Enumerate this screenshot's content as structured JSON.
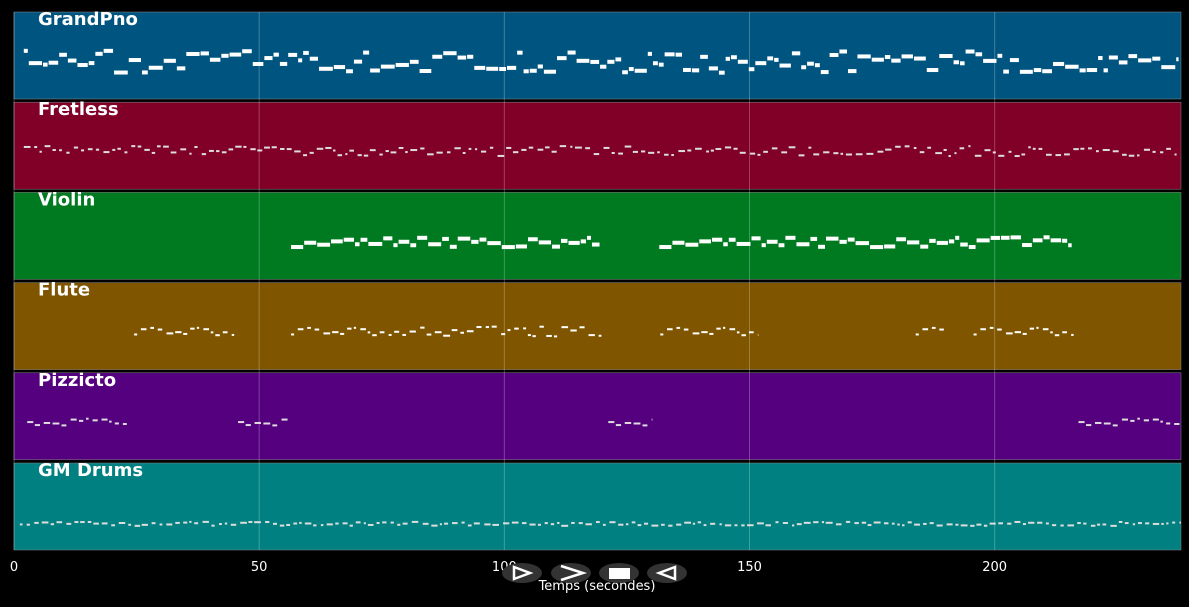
{
  "chart_data": {
    "type": "pianoroll",
    "xlabel": "Temps (secondes)",
    "xlim": [
      0,
      238
    ],
    "xticks": [
      0,
      50,
      100,
      150,
      200
    ],
    "grid": true,
    "tracks": [
      {
        "name": "GrandPno",
        "color": "#005580",
        "segments": [
          [
            2,
            237.5
          ]
        ]
      },
      {
        "name": "Fretless",
        "color": "#800028",
        "segments": [
          [
            2,
            237.5
          ]
        ]
      },
      {
        "name": "Violin",
        "color": "#007a20",
        "segments": [
          [
            56.5,
            119.6
          ],
          [
            131.6,
            215.7
          ]
        ]
      },
      {
        "name": "Flute",
        "color": "#7f5500",
        "segments": [
          [
            24.5,
            44.9
          ],
          [
            56.5,
            119.8
          ],
          [
            131.8,
            151.8
          ],
          [
            183.9,
            190.2
          ],
          [
            195.7,
            216.1
          ]
        ]
      },
      {
        "name": "Pizzicto",
        "color": "#55007f",
        "segments": [
          [
            2.7,
            23
          ],
          [
            45.7,
            56.1
          ],
          [
            121.2,
            130.2
          ],
          [
            217.1,
            238
          ]
        ]
      },
      {
        "name": "GM Drums",
        "color": "#008080",
        "segments": [
          [
            1.2,
            238
          ]
        ]
      }
    ]
  }
}
